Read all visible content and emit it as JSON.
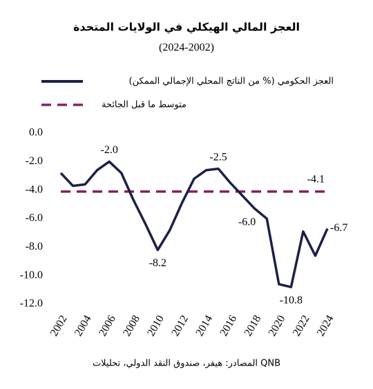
{
  "chart_data": {
    "type": "line",
    "title": "العجز المالي الهيكلي في الولايات المتحدة",
    "subtitle": "(2024-2002)",
    "source": "المصادر: هيفر، صندوق النقد الدولي، تحليلات QNB",
    "x": [
      2002,
      2003,
      2004,
      2005,
      2006,
      2007,
      2008,
      2009,
      2010,
      2011,
      2012,
      2013,
      2014,
      2015,
      2016,
      2017,
      2018,
      2019,
      2020,
      2021,
      2022,
      2023,
      2024
    ],
    "series": [
      {
        "name": "العجز الحكومي (% من الناتج المحلي الإجمالي الممكن)",
        "color": "#1c1f45",
        "values": [
          -2.8,
          -3.7,
          -3.6,
          -2.6,
          -2.0,
          -2.8,
          -4.7,
          -6.4,
          -8.2,
          -6.8,
          -4.9,
          -3.2,
          -2.6,
          -2.5,
          -3.5,
          -4.4,
          -5.3,
          -6.0,
          -10.6,
          -10.8,
          -6.9,
          -8.6,
          -6.7
        ],
        "value_labels": [
          null,
          null,
          null,
          null,
          "-2.0",
          null,
          null,
          null,
          "-8.2",
          null,
          null,
          null,
          null,
          "-2.5",
          null,
          null,
          null,
          "-6.0",
          null,
          "-10.8",
          null,
          null,
          "-6.7"
        ]
      }
    ],
    "reference": {
      "name": "متوسط ما قبل الجائحة",
      "color": "#8b1f5c",
      "value": -4.1,
      "value_label": "-4.1"
    },
    "xlim": [
      2002,
      2024
    ],
    "xticks": [
      2002,
      2004,
      2006,
      2008,
      2010,
      2012,
      2014,
      2016,
      2018,
      2020,
      2022,
      2024
    ],
    "ylim": [
      -12,
      0
    ],
    "yticks": [
      {
        "value": 0,
        "label": "0.0"
      },
      {
        "value": -2,
        "label": "-2.0"
      },
      {
        "value": -4,
        "label": "-4.0"
      },
      {
        "value": -6,
        "label": "-6.0"
      },
      {
        "value": -8,
        "label": "-8.0"
      },
      {
        "value": -10,
        "label": "-10.0"
      },
      {
        "value": -12,
        "label": "-12.0"
      }
    ]
  }
}
